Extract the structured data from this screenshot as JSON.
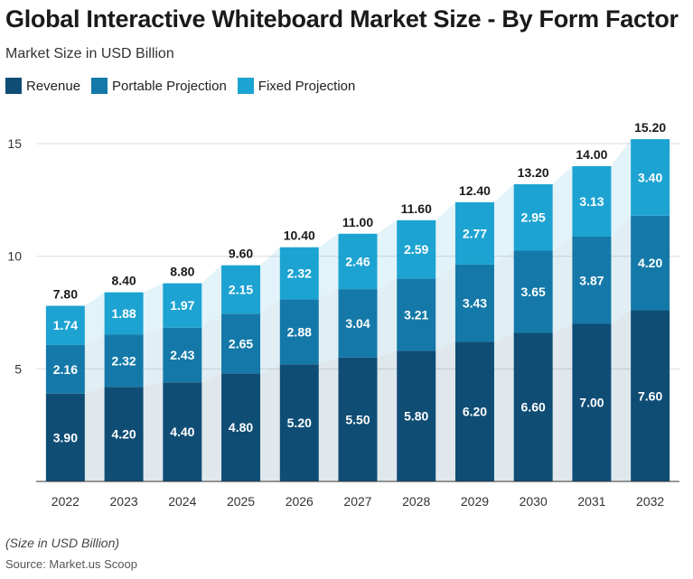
{
  "chart_data": {
    "type": "bar",
    "stacked": true,
    "title": "Global Interactive Whiteboard Market Size - By Form Factor",
    "subtitle": "Market Size in USD Billion",
    "categories": [
      "2022",
      "2023",
      "2024",
      "2025",
      "2026",
      "2027",
      "2028",
      "2029",
      "2030",
      "2031",
      "2032"
    ],
    "series": [
      {
        "name": "Revenue",
        "color": "#0f4d75",
        "values": [
          3.9,
          4.2,
          4.4,
          4.8,
          5.2,
          5.5,
          5.8,
          6.2,
          6.6,
          7.0,
          7.6
        ]
      },
      {
        "name": "Portable Projection",
        "color": "#1479a8",
        "values": [
          2.16,
          2.32,
          2.43,
          2.65,
          2.88,
          3.04,
          3.21,
          3.43,
          3.65,
          3.87,
          4.2
        ]
      },
      {
        "name": "Fixed Projection",
        "color": "#1da3d2",
        "values": [
          1.74,
          1.88,
          1.97,
          2.15,
          2.32,
          2.46,
          2.59,
          2.77,
          2.95,
          3.13,
          3.4
        ]
      }
    ],
    "totals": [
      7.8,
      8.4,
      8.8,
      9.6,
      10.4,
      11.0,
      11.6,
      12.4,
      13.2,
      14.0,
      15.2
    ],
    "yticks": [
      5,
      10,
      15
    ],
    "ylim": [
      0,
      16.5
    ],
    "grid": true,
    "legend_position": "top-left",
    "xlabel": "",
    "ylabel": ""
  },
  "footnote": "(Size in USD Billion)",
  "source": "Source: Market.us Scoop"
}
